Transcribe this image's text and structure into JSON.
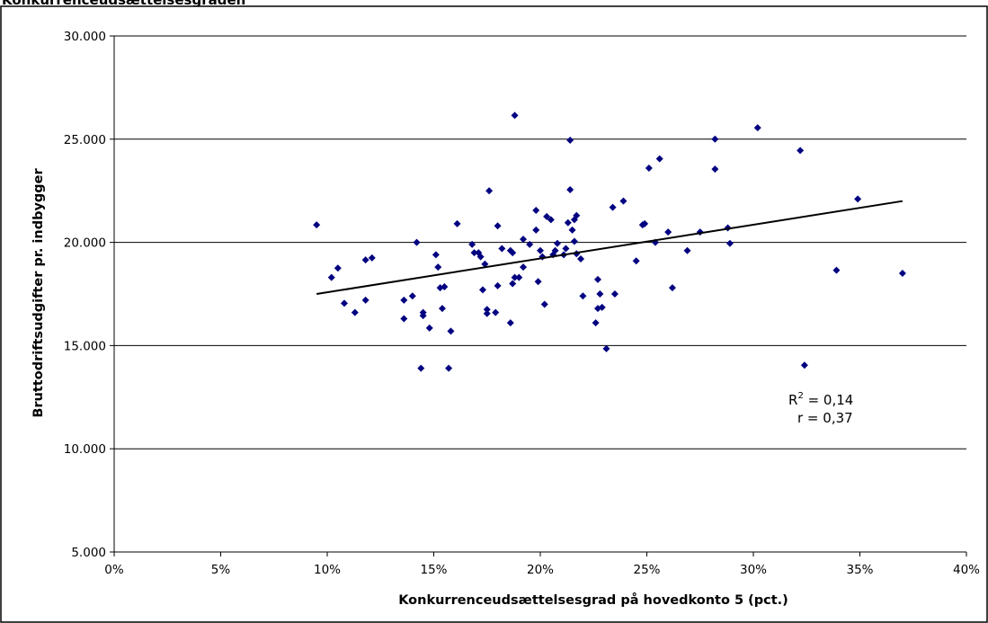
{
  "page_title": "Konkurrenceudsættelsesgraden",
  "chart_data": {
    "type": "scatter",
    "title": "Konkurrenceudsættelsesgraden",
    "xlabel": "Konkurrenceudsættelsesgrad på hovedkonto 5 (pct.)",
    "ylabel": "Bruttodriftsudgifter pr. indbygger",
    "xlim": [
      0,
      40
    ],
    "ylim": [
      5000,
      30000
    ],
    "x_ticks": [
      0,
      5,
      10,
      15,
      20,
      25,
      30,
      35,
      40
    ],
    "x_tick_labels": [
      "0%",
      "5%",
      "10%",
      "15%",
      "20%",
      "25%",
      "30%",
      "35%",
      "40%"
    ],
    "y_ticks": [
      5000,
      10000,
      15000,
      20000,
      25000,
      30000
    ],
    "y_tick_labels": [
      "5.000",
      "10.000",
      "15.000",
      "20.000",
      "25.000",
      "30.000"
    ],
    "grid": "horizontal",
    "marker_color": "#000080",
    "trendline": {
      "x": [
        9.5,
        37.0
      ],
      "y": [
        17500,
        22000
      ],
      "color": "#000000"
    },
    "annotation": {
      "r2_label": "R",
      "r2_sup": "2",
      "r2_value": " = 0,14",
      "r_label": "r = 0,37"
    },
    "points": [
      [
        9.5,
        20850
      ],
      [
        10.2,
        18300
      ],
      [
        10.5,
        18750
      ],
      [
        10.8,
        17050
      ],
      [
        11.3,
        16600
      ],
      [
        11.8,
        17200
      ],
      [
        11.8,
        19150
      ],
      [
        12.1,
        19250
      ],
      [
        13.6,
        17200
      ],
      [
        13.6,
        16300
      ],
      [
        14.0,
        17400
      ],
      [
        14.2,
        20000
      ],
      [
        14.4,
        13900
      ],
      [
        14.5,
        16600
      ],
      [
        14.5,
        16450
      ],
      [
        14.8,
        15850
      ],
      [
        15.1,
        19400
      ],
      [
        15.2,
        18800
      ],
      [
        15.3,
        17800
      ],
      [
        15.4,
        16800
      ],
      [
        15.5,
        17850
      ],
      [
        15.7,
        13900
      ],
      [
        15.8,
        15700
      ],
      [
        16.1,
        20900
      ],
      [
        16.8,
        19900
      ],
      [
        16.9,
        19500
      ],
      [
        17.1,
        19500
      ],
      [
        17.2,
        19300
      ],
      [
        17.3,
        17700
      ],
      [
        17.4,
        18950
      ],
      [
        17.5,
        16750
      ],
      [
        17.5,
        16550
      ],
      [
        17.6,
        22500
      ],
      [
        17.9,
        16600
      ],
      [
        18.0,
        17900
      ],
      [
        18.0,
        20800
      ],
      [
        18.2,
        19700
      ],
      [
        18.6,
        16100
      ],
      [
        18.6,
        19600
      ],
      [
        18.7,
        18000
      ],
      [
        18.7,
        19500
      ],
      [
        18.8,
        18300
      ],
      [
        18.8,
        26150
      ],
      [
        19.0,
        18300
      ],
      [
        19.2,
        18800
      ],
      [
        19.2,
        20150
      ],
      [
        19.5,
        19900
      ],
      [
        19.8,
        20600
      ],
      [
        19.8,
        21550
      ],
      [
        19.9,
        18100
      ],
      [
        20.0,
        19600
      ],
      [
        20.1,
        19300
      ],
      [
        20.2,
        17000
      ],
      [
        20.3,
        21250
      ],
      [
        20.5,
        21100
      ],
      [
        20.6,
        19400
      ],
      [
        20.7,
        19600
      ],
      [
        20.8,
        19950
      ],
      [
        21.1,
        19400
      ],
      [
        21.2,
        19700
      ],
      [
        21.3,
        20950
      ],
      [
        21.4,
        22550
      ],
      [
        21.4,
        24950
      ],
      [
        21.5,
        20600
      ],
      [
        21.6,
        20050
      ],
      [
        21.6,
        21100
      ],
      [
        21.7,
        19450
      ],
      [
        21.7,
        21300
      ],
      [
        21.9,
        19200
      ],
      [
        22.0,
        17400
      ],
      [
        22.6,
        16100
      ],
      [
        22.7,
        16800
      ],
      [
        22.7,
        18200
      ],
      [
        22.8,
        17500
      ],
      [
        22.9,
        16850
      ],
      [
        23.1,
        14850
      ],
      [
        23.4,
        21700
      ],
      [
        23.5,
        17500
      ],
      [
        23.9,
        22000
      ],
      [
        24.5,
        19100
      ],
      [
        24.8,
        20850
      ],
      [
        24.9,
        20900
      ],
      [
        25.1,
        23600
      ],
      [
        25.4,
        20000
      ],
      [
        25.6,
        24050
      ],
      [
        26.0,
        20500
      ],
      [
        26.2,
        17800
      ],
      [
        26.9,
        19600
      ],
      [
        27.5,
        20500
      ],
      [
        28.2,
        25000
      ],
      [
        28.2,
        23550
      ],
      [
        28.8,
        20700
      ],
      [
        28.9,
        19950
      ],
      [
        30.2,
        25550
      ],
      [
        32.2,
        24450
      ],
      [
        32.4,
        14050
      ],
      [
        33.9,
        18650
      ],
      [
        34.9,
        22100
      ],
      [
        37.0,
        18500
      ]
    ]
  }
}
